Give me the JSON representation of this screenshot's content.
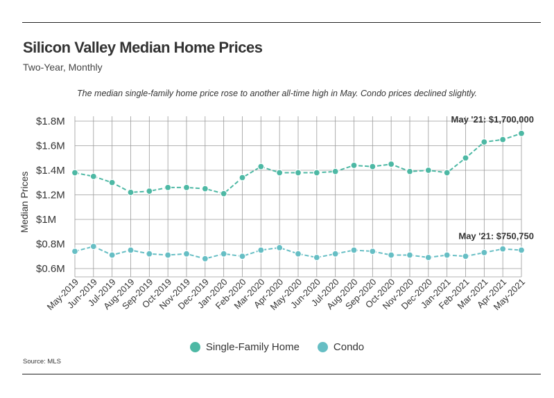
{
  "title": "Silicon Valley Median Home Prices",
  "subtitle": "Two-Year, Monthly",
  "note": "The median single-family home price rose to another all-time high in May. Condo prices declined slightly.",
  "source": "Source:  MLS",
  "colors": {
    "single_family": "#4DB8A4",
    "condo": "#66BEC4",
    "grid": "#9a9a9a"
  },
  "chart_data": {
    "type": "line",
    "ylabel": "Median Prices",
    "ylim": [
      0.5,
      1.8
    ],
    "yticks": [
      {
        "value": 0.6,
        "label": "$0.6M"
      },
      {
        "value": 0.8,
        "label": "$0.8M"
      },
      {
        "value": 1.0,
        "label": "$1M"
      },
      {
        "value": 1.2,
        "label": "$1.2M"
      },
      {
        "value": 1.4,
        "label": "$1.4M"
      },
      {
        "value": 1.6,
        "label": "$1.6M"
      },
      {
        "value": 1.8,
        "label": "$1.8M"
      }
    ],
    "categories": [
      "May-2019",
      "Jun-2019",
      "Jul-2019",
      "Aug-2019",
      "Sep-2019",
      "Oct-2019",
      "Nov-2019",
      "Dec-2019",
      "Jan-2020",
      "Feb-2020",
      "Mar-2020",
      "Apr-2020",
      "May-2020",
      "Jun-2020",
      "Jul-2020",
      "Aug-2020",
      "Sep-2020",
      "Oct-2020",
      "Nov-2020",
      "Dec-2020",
      "Jan-2021",
      "Feb-2021",
      "Mar-2021",
      "Apr-2021",
      "May-2021"
    ],
    "series": [
      {
        "name": "Single-Family Home",
        "color": "#4DB8A4",
        "values": [
          1.38,
          1.35,
          1.3,
          1.22,
          1.23,
          1.26,
          1.26,
          1.25,
          1.21,
          1.34,
          1.43,
          1.38,
          1.38,
          1.38,
          1.39,
          1.44,
          1.43,
          1.45,
          1.39,
          1.4,
          1.38,
          1.5,
          1.63,
          1.65,
          1.7
        ]
      },
      {
        "name": "Condo",
        "color": "#66BEC4",
        "values": [
          0.74,
          0.78,
          0.71,
          0.75,
          0.72,
          0.71,
          0.72,
          0.68,
          0.72,
          0.7,
          0.75,
          0.77,
          0.72,
          0.69,
          0.72,
          0.75,
          0.74,
          0.71,
          0.71,
          0.69,
          0.71,
          0.7,
          0.73,
          0.76,
          0.75
        ]
      }
    ],
    "annotations": [
      {
        "series": 0,
        "index": 24,
        "text": "May '21: $1,700,000"
      },
      {
        "series": 1,
        "index": 24,
        "text": "May '21: $750,750"
      }
    ]
  },
  "legend": [
    {
      "label": "Single-Family Home",
      "color": "#4DB8A4"
    },
    {
      "label": "Condo",
      "color": "#66BEC4"
    }
  ]
}
